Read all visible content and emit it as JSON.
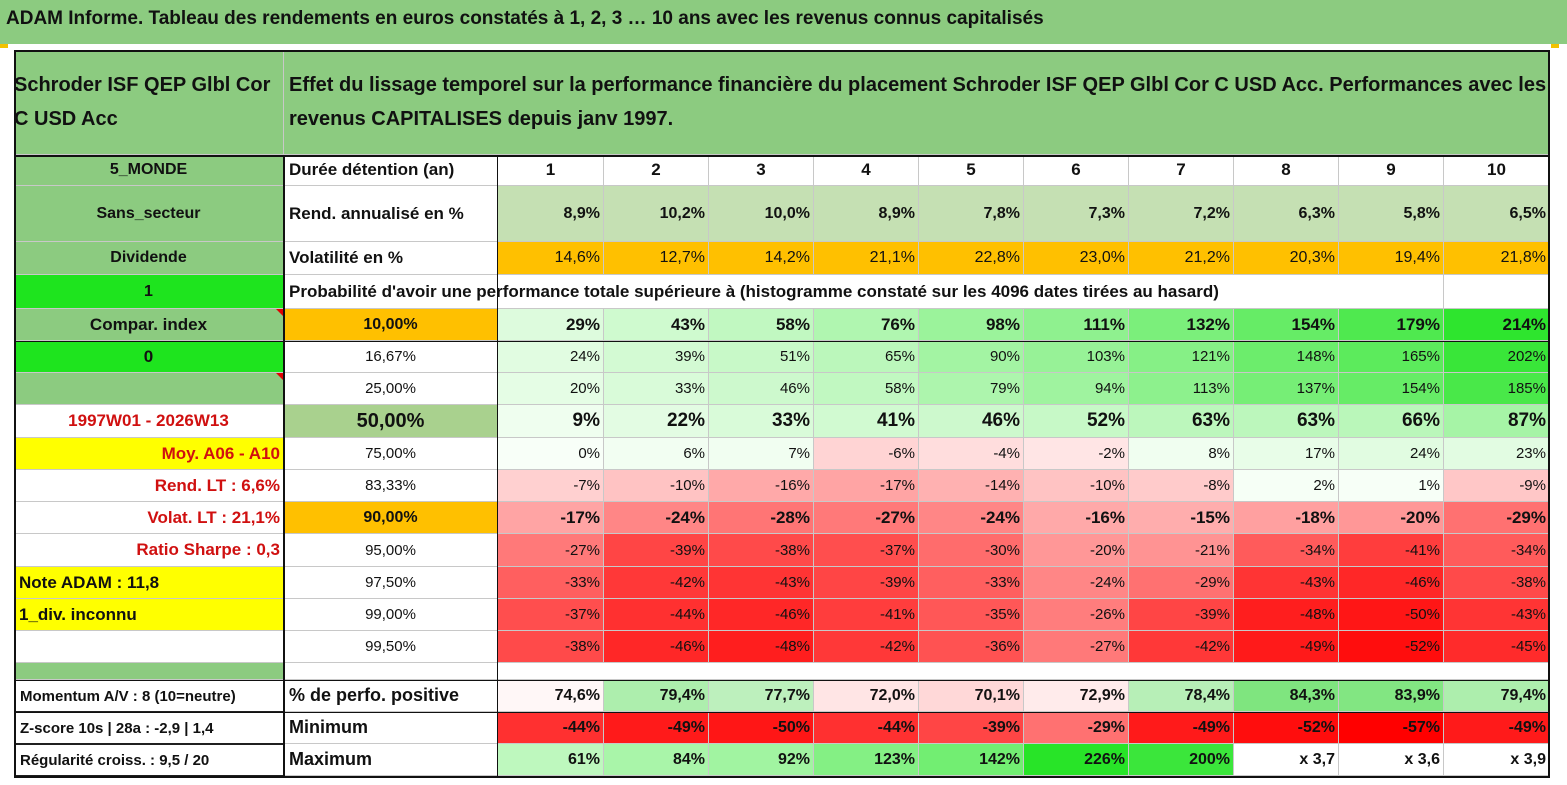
{
  "title": "ADAM Informe. Tableau des rendements en euros constatés à 1, 2, 3 … 10 ans avec les revenus connus capitalisés",
  "fund_name": "Schroder ISF QEP Glbl Cor C USD Acc",
  "description": "Effet du lissage temporel sur la performance financière du placement Schroder ISF QEP Glbl Cor C USD Acc. Performances avec les revenus CAPITALISES depuis janv 1997.",
  "colors": {
    "header_green": "#8ccb80",
    "bright_green": "#1ee41e",
    "yellow": "#ffff00",
    "orange": "#ffc000",
    "sage": "#a9d18e",
    "red_label": "#d01010"
  },
  "side": {
    "zone": "5_MONDE",
    "sector": "Sans_secteur",
    "dividend": "Dividende",
    "value_1": "1",
    "compar": "Compar. index",
    "value_0": "0",
    "period": "1997W01 - 2026W13",
    "moy": "Moy. A06 - A10",
    "rend_lt": "Rend. LT :   6,6%",
    "volat_lt": "Volat. LT :   21,1%",
    "sharpe": "Ratio Sharpe :    0,3",
    "note": "Note ADAM : 11,8",
    "div_inconnu": "1_div. inconnu",
    "momentum": "Momentum A/V : 8 (10=neutre)",
    "zscore": "Z-score 10s | 28a : -2,9 | 1,4",
    "regularite": "Régularité croiss. : 9,5 / 20"
  },
  "labels": {
    "duree": "Durée détention (an)",
    "rend": "Rend. annualisé en %",
    "vol": "Volatilité en %",
    "prob": "Probabilité d'avoir une performance totale supérieure à (histogramme constaté sur les 4096 dates tirées au hasard)",
    "perf_pos": "% de perfo. positive",
    "minimum": "Minimum",
    "maximum": "Maximum"
  },
  "years": [
    "1",
    "2",
    "3",
    "4",
    "5",
    "6",
    "7",
    "8",
    "9",
    "10"
  ],
  "rend": [
    "8,9%",
    "10,2%",
    "10,0%",
    "8,9%",
    "7,8%",
    "7,3%",
    "7,2%",
    "6,3%",
    "5,8%",
    "6,5%"
  ],
  "vol": [
    "14,6%",
    "12,7%",
    "14,2%",
    "21,1%",
    "22,8%",
    "23,0%",
    "21,2%",
    "20,3%",
    "19,4%",
    "21,8%"
  ],
  "prob_rows": [
    {
      "p": "10,00%",
      "v": [
        "29%",
        "43%",
        "58%",
        "76%",
        "98%",
        "111%",
        "132%",
        "154%",
        "179%",
        "214%"
      ]
    },
    {
      "p": "16,67%",
      "v": [
        "24%",
        "39%",
        "51%",
        "65%",
        "90%",
        "103%",
        "121%",
        "148%",
        "165%",
        "202%"
      ]
    },
    {
      "p": "25,00%",
      "v": [
        "20%",
        "33%",
        "46%",
        "58%",
        "79%",
        "94%",
        "113%",
        "137%",
        "154%",
        "185%"
      ]
    },
    {
      "p": "50,00%",
      "v": [
        "9%",
        "22%",
        "33%",
        "41%",
        "46%",
        "52%",
        "63%",
        "63%",
        "66%",
        "87%"
      ]
    },
    {
      "p": "75,00%",
      "v": [
        "0%",
        "6%",
        "7%",
        "-6%",
        "-4%",
        "-2%",
        "8%",
        "17%",
        "24%",
        "23%"
      ]
    },
    {
      "p": "83,33%",
      "v": [
        "-7%",
        "-10%",
        "-16%",
        "-17%",
        "-14%",
        "-10%",
        "-8%",
        "2%",
        "1%",
        "-9%"
      ]
    },
    {
      "p": "90,00%",
      "v": [
        "-17%",
        "-24%",
        "-28%",
        "-27%",
        "-24%",
        "-16%",
        "-15%",
        "-18%",
        "-20%",
        "-29%"
      ]
    },
    {
      "p": "95,00%",
      "v": [
        "-27%",
        "-39%",
        "-38%",
        "-37%",
        "-30%",
        "-20%",
        "-21%",
        "-34%",
        "-41%",
        "-34%"
      ]
    },
    {
      "p": "97,50%",
      "v": [
        "-33%",
        "-42%",
        "-43%",
        "-39%",
        "-33%",
        "-24%",
        "-29%",
        "-43%",
        "-46%",
        "-38%"
      ]
    },
    {
      "p": "99,00%",
      "v": [
        "-37%",
        "-44%",
        "-46%",
        "-41%",
        "-35%",
        "-26%",
        "-39%",
        "-48%",
        "-50%",
        "-43%"
      ]
    },
    {
      "p": "99,50%",
      "v": [
        "-38%",
        "-46%",
        "-48%",
        "-42%",
        "-36%",
        "-27%",
        "-42%",
        "-49%",
        "-52%",
        "-45%"
      ]
    }
  ],
  "perf_pos": [
    "74,6%",
    "79,4%",
    "77,7%",
    "72,0%",
    "70,1%",
    "72,9%",
    "78,4%",
    "84,3%",
    "83,9%",
    "79,4%"
  ],
  "minimum": [
    "-44%",
    "-49%",
    "-50%",
    "-44%",
    "-39%",
    "-29%",
    "-49%",
    "-52%",
    "-57%",
    "-49%"
  ],
  "maximum": [
    "61%",
    "84%",
    "92%",
    "123%",
    "142%",
    "226%",
    "200%",
    "x 3,7",
    "x 3,6",
    "x 3,9"
  ]
}
